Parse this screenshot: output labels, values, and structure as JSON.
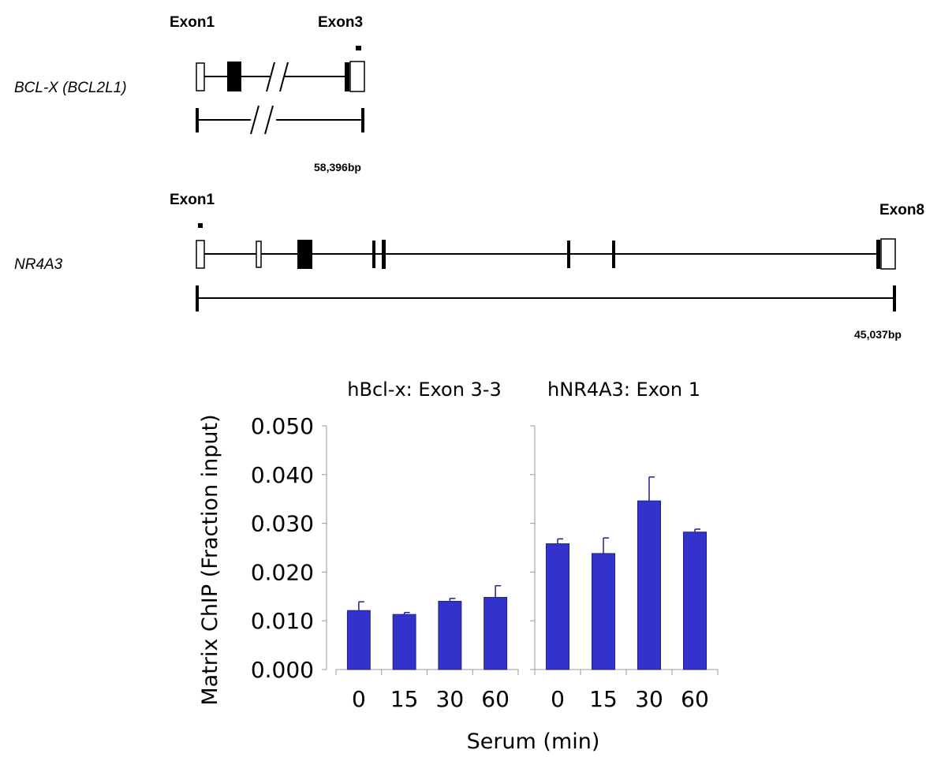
{
  "gene_diagram": {
    "bclx": {
      "gene_label": "BCL-X (BCL2L1)",
      "exon_start_label": "Exon1",
      "exon_end_label": "Exon3",
      "length_label": "58,396bp"
    },
    "nr4a3": {
      "gene_label": "NR4A3",
      "exon_start_label": "Exon1",
      "exon_end_label": "Exon8",
      "length_label": "45,037bp"
    }
  },
  "chart_data": {
    "type": "bar",
    "ylabel": "Matrix ChIP (Fraction input)",
    "xlabel": "Serum (min)",
    "ylim": [
      0,
      0.05
    ],
    "yticks": [
      "0.000",
      "0.010",
      "0.020",
      "0.030",
      "0.040",
      "0.050"
    ],
    "grid": false,
    "bar_color": "#3333cc",
    "panels": [
      {
        "title": "hBcl-x: Exon 3-3",
        "categories": [
          "0",
          "15",
          "30",
          "60"
        ],
        "values": [
          0.0121,
          0.0113,
          0.014,
          0.0148
        ],
        "errors": [
          0.0018,
          0.0004,
          0.0006,
          0.0024
        ]
      },
      {
        "title": "hNR4A3: Exon 1",
        "categories": [
          "0",
          "15",
          "30",
          "60"
        ],
        "values": [
          0.0258,
          0.0238,
          0.0346,
          0.0282
        ],
        "errors": [
          0.001,
          0.0032,
          0.0049,
          0.0006
        ]
      }
    ]
  }
}
